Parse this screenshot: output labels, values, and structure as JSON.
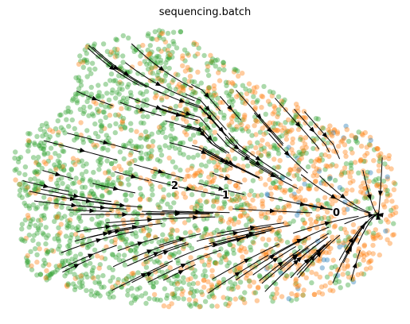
{
  "chart_data": {
    "type": "scatter",
    "title": "sequencing.batch",
    "overlay": "velocity streamlines",
    "axes_visible": false,
    "grid": false,
    "legend": "none",
    "cluster_labels": [
      {
        "text": "2",
        "x": 215,
        "y": 238
      },
      {
        "text": "1",
        "x": 279,
        "y": 250
      },
      {
        "text": "0",
        "x": 418,
        "y": 272
      }
    ],
    "point_colors": {
      "batch_a": "#1f77b4",
      "batch_b": "#ff7f0e",
      "batch_c": "#2ca02c"
    },
    "stream_color": "#000000"
  }
}
